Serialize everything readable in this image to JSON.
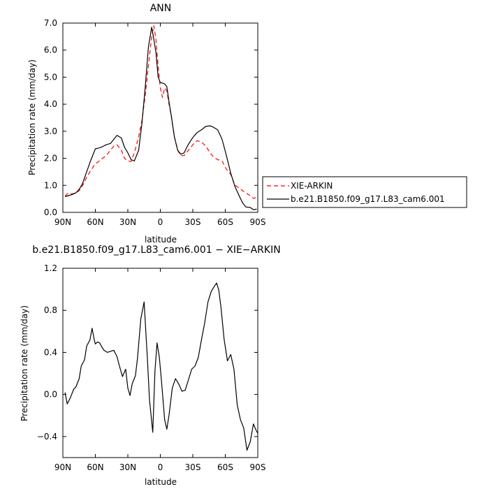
{
  "chart_data": [
    {
      "type": "line",
      "title": "ANN",
      "xlabel": "latitude",
      "ylabel": "Precipitation rate (mm/day)",
      "xlim": [
        -90,
        90
      ],
      "ylim": [
        0,
        7
      ],
      "xticks": [
        {
          "value": -90,
          "label": "90N"
        },
        {
          "value": -60,
          "label": "60N"
        },
        {
          "value": -30,
          "label": "30N"
        },
        {
          "value": 0,
          "label": "0"
        },
        {
          "value": 30,
          "label": "30S"
        },
        {
          "value": 60,
          "label": "60S"
        },
        {
          "value": 90,
          "label": "90S"
        }
      ],
      "yticks": [
        {
          "value": 0,
          "label": "0.0"
        },
        {
          "value": 1,
          "label": "1.0"
        },
        {
          "value": 2,
          "label": "2.0"
        },
        {
          "value": 3,
          "label": "3.0"
        },
        {
          "value": 4,
          "label": "4.0"
        },
        {
          "value": 5,
          "label": "5.0"
        },
        {
          "value": 6,
          "label": "6.0"
        },
        {
          "value": 7,
          "label": "7.0"
        }
      ],
      "legend_position": "right",
      "series": [
        {
          "name": "XIE-ARKIN",
          "color": "#ff0000",
          "dash": true,
          "x": [
            -88,
            -85,
            -82,
            -78,
            -75,
            -72,
            -68,
            -65,
            -60,
            -57,
            -55,
            -50,
            -46,
            -43,
            -40,
            -36,
            -33,
            -30,
            -27,
            -24,
            -20,
            -17,
            -14,
            -11,
            -8,
            -6,
            -4,
            -2,
            0,
            2,
            4,
            6,
            8,
            10,
            13,
            16,
            19,
            22,
            25,
            28,
            31,
            34,
            38,
            42,
            46,
            49,
            53,
            57,
            61,
            65,
            69,
            73,
            76,
            79,
            83,
            86,
            89
          ],
          "values": [
            0.6,
            0.72,
            0.68,
            0.72,
            0.8,
            0.98,
            1.3,
            1.5,
            1.8,
            1.88,
            1.95,
            2.1,
            2.3,
            2.45,
            2.5,
            2.3,
            2.0,
            1.9,
            1.88,
            2.2,
            2.8,
            3.4,
            4.3,
            5.4,
            6.5,
            6.9,
            6.4,
            5.4,
            4.6,
            4.25,
            4.6,
            4.5,
            4.0,
            3.6,
            2.8,
            2.3,
            2.1,
            2.1,
            2.25,
            2.4,
            2.55,
            2.65,
            2.6,
            2.45,
            2.2,
            2.05,
            1.95,
            1.9,
            1.6,
            1.4,
            1.0,
            0.9,
            0.8,
            0.72,
            0.62,
            0.52,
            0.55
          ]
        },
        {
          "name": "b.e21.B1850.f09_g17.L83_cam6.001",
          "color": "#000000",
          "dash": false,
          "x": [
            -88,
            -85,
            -82,
            -78,
            -75,
            -72,
            -68,
            -65,
            -60,
            -57,
            -55,
            -50,
            -46,
            -43,
            -40,
            -36,
            -33,
            -30,
            -27,
            -24,
            -20,
            -17,
            -14,
            -11,
            -8,
            -6,
            -4,
            -2,
            0,
            2,
            4,
            6,
            8,
            10,
            13,
            16,
            19,
            22,
            25,
            28,
            31,
            34,
            38,
            42,
            46,
            49,
            53,
            57,
            61,
            65,
            69,
            73,
            76,
            79,
            83,
            86,
            89
          ],
          "values": [
            0.58,
            0.62,
            0.65,
            0.72,
            0.85,
            1.05,
            1.5,
            1.85,
            2.35,
            2.38,
            2.4,
            2.5,
            2.55,
            2.7,
            2.85,
            2.75,
            2.4,
            2.2,
            1.95,
            1.9,
            2.3,
            3.3,
            4.6,
            6.1,
            6.85,
            6.4,
            5.9,
            5.0,
            4.8,
            4.78,
            4.75,
            4.65,
            4.1,
            3.6,
            2.8,
            2.3,
            2.15,
            2.2,
            2.45,
            2.65,
            2.82,
            2.95,
            3.05,
            3.18,
            3.2,
            3.15,
            3.05,
            2.7,
            2.1,
            1.45,
            0.95,
            0.6,
            0.35,
            0.2,
            0.18,
            0.1,
            0.12
          ]
        }
      ]
    },
    {
      "type": "line",
      "title": "b.e21.B1850.f09_g17.L83_cam6.001  −  XIE−ARKIN",
      "xlabel": "latitude",
      "ylabel": "Precipitation rate (mm/day)",
      "xlim": [
        -90,
        90
      ],
      "ylim": [
        -0.6,
        1.2
      ],
      "xticks": [
        {
          "value": -90,
          "label": "90N"
        },
        {
          "value": -60,
          "label": "60N"
        },
        {
          "value": -30,
          "label": "30N"
        },
        {
          "value": 0,
          "label": "0"
        },
        {
          "value": 30,
          "label": "30S"
        },
        {
          "value": 60,
          "label": "60S"
        },
        {
          "value": 90,
          "label": "90S"
        }
      ],
      "yticks": [
        {
          "value": -0.4,
          "label": "−0.4"
        },
        {
          "value": 0.0,
          "label": "0.0"
        },
        {
          "value": 0.4,
          "label": "0.4"
        },
        {
          "value": 0.8,
          "label": "0.8"
        },
        {
          "value": 1.2,
          "label": "1.2"
        }
      ],
      "series": [
        {
          "color": "#000000",
          "dash": false,
          "x": [
            -88,
            -86,
            -83,
            -80,
            -78,
            -75,
            -73,
            -70,
            -68,
            -65,
            -63,
            -61,
            -60,
            -58,
            -56,
            -54,
            -52,
            -49,
            -46,
            -43,
            -40,
            -38,
            -35,
            -32,
            -30,
            -28,
            -26,
            -23,
            -21,
            -18,
            -15,
            -12,
            -10,
            -7,
            -5,
            -3,
            -1,
            1,
            4,
            6,
            8,
            11,
            14,
            17,
            20,
            23,
            26,
            29,
            32,
            35,
            38,
            41,
            44,
            47,
            50,
            52,
            54,
            56,
            59,
            62,
            65,
            68,
            71,
            74,
            77,
            80,
            83,
            86,
            88,
            90
          ],
          "values": [
            0.02,
            -0.09,
            -0.03,
            0.05,
            0.07,
            0.15,
            0.27,
            0.33,
            0.46,
            0.52,
            0.63,
            0.52,
            0.48,
            0.5,
            0.49,
            0.45,
            0.42,
            0.4,
            0.41,
            0.42,
            0.36,
            0.28,
            0.17,
            0.24,
            0.06,
            -0.01,
            0.1,
            0.18,
            0.35,
            0.72,
            0.88,
            0.35,
            -0.05,
            -0.36,
            0.22,
            0.49,
            0.36,
            0.14,
            -0.24,
            -0.33,
            -0.2,
            0.06,
            0.15,
            0.1,
            0.03,
            0.04,
            0.14,
            0.24,
            0.27,
            0.35,
            0.52,
            0.68,
            0.88,
            0.98,
            1.03,
            1.06,
            0.99,
            0.83,
            0.52,
            0.32,
            0.38,
            0.24,
            -0.1,
            -0.24,
            -0.32,
            -0.53,
            -0.45,
            -0.28,
            -0.33,
            -0.37
          ]
        }
      ]
    }
  ]
}
